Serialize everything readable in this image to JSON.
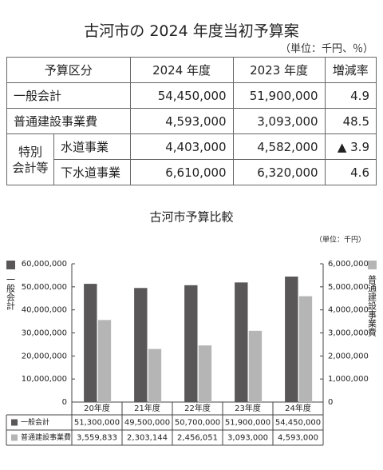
{
  "header": {
    "title": "古河市の 2024 年度当初予算案",
    "unit": "（単位：千円、％）"
  },
  "table": {
    "columns": [
      "予算区分",
      "2024 年度",
      "2023 年度",
      "増減率"
    ],
    "rows": [
      [
        "一般会計",
        "54,450,000",
        "51,900,000",
        "4.9"
      ],
      [
        "普通建設事業費",
        "4,593,000",
        "3,093,000",
        "48.5"
      ]
    ],
    "group": {
      "label_lines": [
        "特別",
        "会計等"
      ],
      "rows": [
        [
          "水道事業",
          "4,403,000",
          "4,582,000",
          "▲ 3.9"
        ],
        [
          "下水道事業",
          "6,610,000",
          "6,320,000",
          "4.6"
        ]
      ]
    }
  },
  "chart_data": {
    "type": "bar",
    "title": "古河市予算比較",
    "unit": "（単位：千円）",
    "ylabel": "一般会計",
    "y2label": "普通建設事業費",
    "categories": [
      "20年度",
      "21年度",
      "22年度",
      "23年度",
      "24年度"
    ],
    "series": [
      {
        "name": "一般会計",
        "color": "#595757",
        "values": [
          51300000,
          49500000,
          50700000,
          51900000,
          54450000
        ],
        "value_labels": [
          "51,300,000",
          "49,500,000",
          "50,700,000",
          "51,900,000",
          "54,450,000"
        ]
      },
      {
        "name": "普通建設事業費",
        "color": "#b5b5b5",
        "axis": "y2",
        "values": [
          3559833,
          2303144,
          2456051,
          3093000,
          4593000
        ],
        "value_labels": [
          "3,559,833",
          "2,303,144",
          "2,456,051",
          "3,093,000",
          "4,593,000"
        ]
      }
    ],
    "ylim": [
      0,
      60000000
    ],
    "yticks": [
      0,
      {
        "value": 10000000,
        "label": "10,000,000"
      },
      {
        "value": 20000000,
        "label": "20,000,000"
      },
      {
        "value": 30000000,
        "label": "30,000,000"
      },
      {
        "value": 40000000,
        "label": "40,000,000"
      },
      {
        "value": 50000000,
        "label": "50,000,000"
      },
      {
        "value": 60000000,
        "label": "60,000,000"
      }
    ],
    "y2lim": [
      0,
      6000000
    ],
    "y2ticks": [
      0,
      {
        "value": 1000000,
        "label": "1,000,000"
      },
      {
        "value": 2000000,
        "label": "2,000,000"
      },
      {
        "value": 3000000,
        "label": "3,000,000"
      },
      {
        "value": 4000000,
        "label": "4,000,000"
      },
      {
        "value": 5000000,
        "label": "5,000,000"
      },
      {
        "value": 6000000,
        "label": "6,000,000"
      }
    ]
  }
}
